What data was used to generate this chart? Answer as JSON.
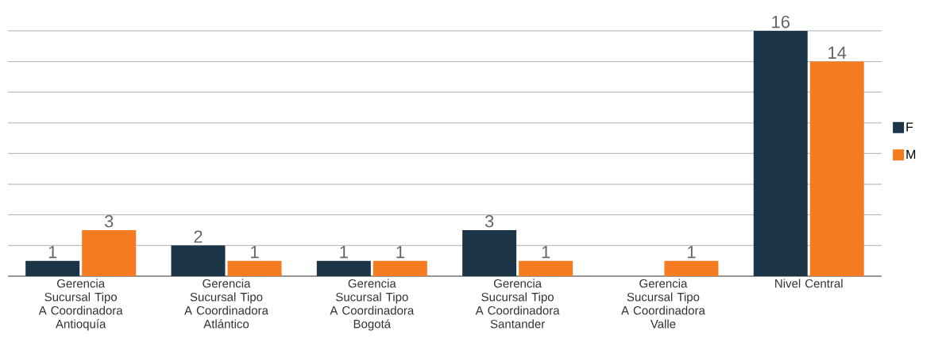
{
  "chart_data": {
    "type": "bar",
    "categories": [
      "Gerencia Sucursal Tipo A Coordinadora Antioquía",
      "Gerencia Sucursal Tipo A Coordinadora Atlántico",
      "Gerencia Sucursal Tipo A Coordinadora Bogotá",
      "Gerencia Sucursal Tipo A Coordinadora Santander",
      "Gerencia Sucursal Tipo A Coordinadora Valle",
      "Nivel Central"
    ],
    "series": [
      {
        "name": "F",
        "color": "#1b3547",
        "values": [
          1,
          2,
          1,
          3,
          null,
          16
        ]
      },
      {
        "name": "M",
        "color": "#f47b20",
        "values": [
          3,
          1,
          1,
          1,
          1,
          14
        ]
      }
    ],
    "tick_labels": "x",
    "grid": "y",
    "data_labels": true,
    "legend": "right"
  }
}
